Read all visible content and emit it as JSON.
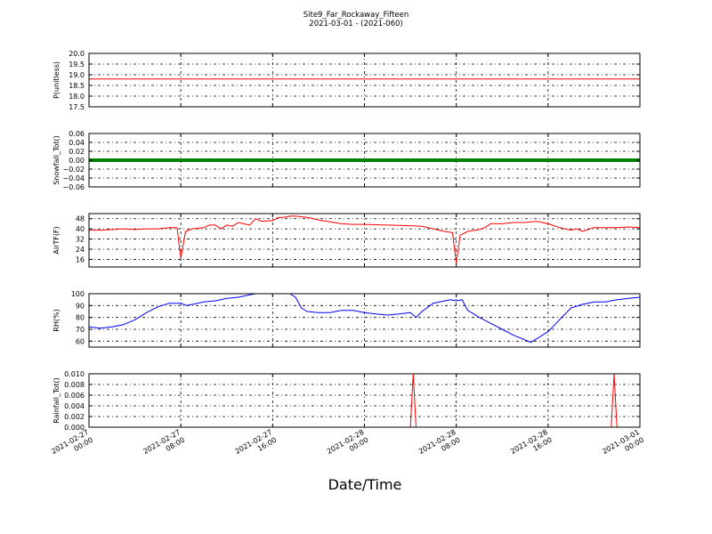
{
  "title_line1": "Site9_Far_Rockaway_Fifteen",
  "title_line2": "2021-03-01 - (2021-060)",
  "xlabel": "Date/Time",
  "x_tick_labels": [
    [
      "2021-02-27",
      "00:00"
    ],
    [
      "2021-02-27",
      "08:00"
    ],
    [
      "2021-02-27",
      "16:00"
    ],
    [
      "2021-02-28",
      "00:00"
    ],
    [
      "2021-02-28",
      "08:00"
    ],
    [
      "2021-02-28",
      "16:00"
    ],
    [
      "2021-03-01",
      "00:00"
    ]
  ],
  "colors": {
    "red": "#ff0000",
    "green": "#008000",
    "blue": "#0000ff",
    "axis": "#000000"
  },
  "chart_data": [
    {
      "type": "line",
      "ylabel": "P(unitless)",
      "x_range": [
        "2021-02-27 00:00",
        "2021-03-01 00:00"
      ],
      "ylim": [
        17.5,
        20.0
      ],
      "yticks": [
        "17.5",
        "18.0",
        "18.5",
        "19.0",
        "19.5",
        "20.0"
      ],
      "color": "#ff0000",
      "points": [
        [
          "2021-02-27 00:00",
          18.8
        ],
        [
          "2021-03-01 00:00",
          18.8
        ]
      ]
    },
    {
      "type": "line",
      "ylabel": "Snowfall_Tot()",
      "x_range": [
        "2021-02-27 00:00",
        "2021-03-01 00:00"
      ],
      "ylim": [
        -0.06,
        0.06
      ],
      "yticks": [
        "−0.06",
        "−0.04",
        "−0.02",
        "0.00",
        "0.02",
        "0.04",
        "0.06"
      ],
      "color": "#008000",
      "points": [
        [
          "2021-02-27 00:00",
          0.0
        ],
        [
          "2021-03-01 00:00",
          0.0
        ]
      ]
    },
    {
      "type": "line",
      "ylabel": "AirTF(F)",
      "x_range": [
        "2021-02-27 00:00",
        "2021-03-01 00:00"
      ],
      "ylim": [
        10,
        52
      ],
      "yticks": [
        "16",
        "24",
        "32",
        "40",
        "48"
      ],
      "color": "#ff0000",
      "points": [
        [
          "2021-02-27 00:00",
          39
        ],
        [
          "2021-02-27 01:00",
          39
        ],
        [
          "2021-02-27 02:00",
          39.5
        ],
        [
          "2021-02-27 03:00",
          40
        ],
        [
          "2021-02-27 04:00",
          39.5
        ],
        [
          "2021-02-27 05:00",
          40
        ],
        [
          "2021-02-27 06:00",
          40
        ],
        [
          "2021-02-27 07:00",
          41
        ],
        [
          "2021-02-27 07:40",
          41
        ],
        [
          "2021-02-27 08:00",
          17
        ],
        [
          "2021-02-27 08:25",
          38
        ],
        [
          "2021-02-27 09:00",
          40
        ],
        [
          "2021-02-27 10:00",
          41
        ],
        [
          "2021-02-27 10:30",
          43
        ],
        [
          "2021-02-27 11:00",
          43
        ],
        [
          "2021-02-27 11:30",
          40
        ],
        [
          "2021-02-27 12:00",
          43
        ],
        [
          "2021-02-27 12:30",
          42
        ],
        [
          "2021-02-27 13:00",
          45
        ],
        [
          "2021-02-27 13:30",
          44
        ],
        [
          "2021-02-27 14:00",
          43
        ],
        [
          "2021-02-27 14:30",
          48
        ],
        [
          "2021-02-27 15:00",
          46
        ],
        [
          "2021-02-27 16:00",
          46.5
        ],
        [
          "2021-02-27 16:30",
          49
        ],
        [
          "2021-02-27 17:00",
          49
        ],
        [
          "2021-02-27 17:30",
          50
        ],
        [
          "2021-02-27 18:00",
          50
        ],
        [
          "2021-02-27 19:00",
          49
        ],
        [
          "2021-02-27 20:00",
          47
        ],
        [
          "2021-02-27 21:00",
          45.5
        ],
        [
          "2021-02-27 22:00",
          44
        ],
        [
          "2021-02-27 23:00",
          43.5
        ],
        [
          "2021-02-28 00:00",
          43.5
        ],
        [
          "2021-02-28 02:00",
          43
        ],
        [
          "2021-02-28 04:00",
          42.5
        ],
        [
          "2021-02-28 05:00",
          42
        ],
        [
          "2021-02-28 06:00",
          40
        ],
        [
          "2021-02-28 07:00",
          38
        ],
        [
          "2021-02-28 07:40",
          37
        ],
        [
          "2021-02-28 08:00",
          13
        ],
        [
          "2021-02-28 08:20",
          35
        ],
        [
          "2021-02-28 09:00",
          38
        ],
        [
          "2021-02-28 10:00",
          39.5
        ],
        [
          "2021-02-28 10:30",
          41
        ],
        [
          "2021-02-28 11:00",
          44
        ],
        [
          "2021-02-28 12:00",
          44
        ],
        [
          "2021-02-28 13:00",
          45
        ],
        [
          "2021-02-28 14:00",
          45
        ],
        [
          "2021-02-28 15:00",
          46
        ],
        [
          "2021-02-28 16:00",
          44
        ],
        [
          "2021-02-28 17:00",
          41
        ],
        [
          "2021-02-28 18:00",
          39
        ],
        [
          "2021-02-28 18:30",
          40
        ],
        [
          "2021-02-28 19:00",
          38
        ],
        [
          "2021-02-28 20:00",
          41
        ],
        [
          "2021-02-28 22:00",
          41
        ],
        [
          "2021-02-28 23:00",
          41.5
        ],
        [
          "2021-03-01 00:00",
          41
        ]
      ]
    },
    {
      "type": "line",
      "ylabel": "RH(%)",
      "x_range": [
        "2021-02-27 00:00",
        "2021-03-01 00:00"
      ],
      "ylim": [
        55,
        100
      ],
      "yticks": [
        "60",
        "70",
        "80",
        "90",
        "100"
      ],
      "color": "#0000ff",
      "points": [
        [
          "2021-02-27 00:00",
          72
        ],
        [
          "2021-02-27 01:00",
          71
        ],
        [
          "2021-02-27 02:00",
          72
        ],
        [
          "2021-02-27 03:00",
          74
        ],
        [
          "2021-02-27 04:00",
          78
        ],
        [
          "2021-02-27 05:00",
          84
        ],
        [
          "2021-02-27 06:00",
          89
        ],
        [
          "2021-02-27 07:00",
          92
        ],
        [
          "2021-02-27 08:00",
          92
        ],
        [
          "2021-02-27 08:30",
          90
        ],
        [
          "2021-02-27 09:00",
          91
        ],
        [
          "2021-02-27 10:00",
          93
        ],
        [
          "2021-02-27 11:00",
          94
        ],
        [
          "2021-02-27 12:00",
          96
        ],
        [
          "2021-02-27 13:00",
          97
        ],
        [
          "2021-02-27 14:00",
          99
        ],
        [
          "2021-02-27 14:30",
          100
        ],
        [
          "2021-02-27 17:30",
          100
        ],
        [
          "2021-02-27 18:00",
          97
        ],
        [
          "2021-02-27 18:30",
          88
        ],
        [
          "2021-02-27 19:00",
          85
        ],
        [
          "2021-02-27 20:00",
          84
        ],
        [
          "2021-02-27 21:00",
          84
        ],
        [
          "2021-02-27 22:00",
          86
        ],
        [
          "2021-02-27 23:00",
          86
        ],
        [
          "2021-02-28 00:00",
          84
        ],
        [
          "2021-02-28 01:00",
          83
        ],
        [
          "2021-02-28 02:00",
          82
        ],
        [
          "2021-02-28 03:00",
          83
        ],
        [
          "2021-02-28 04:00",
          84
        ],
        [
          "2021-02-28 04:30",
          80
        ],
        [
          "2021-02-28 05:00",
          85
        ],
        [
          "2021-02-28 06:00",
          92
        ],
        [
          "2021-02-28 07:00",
          94
        ],
        [
          "2021-02-28 07:30",
          95
        ],
        [
          "2021-02-28 08:00",
          94
        ],
        [
          "2021-02-28 08:30",
          95
        ],
        [
          "2021-02-28 09:00",
          86
        ],
        [
          "2021-02-28 10:00",
          80
        ],
        [
          "2021-02-28 11:00",
          75
        ],
        [
          "2021-02-28 12:00",
          70
        ],
        [
          "2021-02-28 13:00",
          65
        ],
        [
          "2021-02-28 14:00",
          61
        ],
        [
          "2021-02-28 14:30",
          59
        ],
        [
          "2021-02-28 15:00",
          62
        ],
        [
          "2021-02-28 16:00",
          68
        ],
        [
          "2021-02-28 17:00",
          78
        ],
        [
          "2021-02-28 18:00",
          88
        ],
        [
          "2021-02-28 19:00",
          91
        ],
        [
          "2021-02-28 20:00",
          93
        ],
        [
          "2021-02-28 21:00",
          93
        ],
        [
          "2021-02-28 22:00",
          95
        ],
        [
          "2021-02-28 23:00",
          96
        ],
        [
          "2021-03-01 00:00",
          97
        ]
      ]
    },
    {
      "type": "line",
      "ylabel": "Rainfall_Tot()",
      "x_range": [
        "2021-02-27 00:00",
        "2021-03-01 00:00"
      ],
      "ylim": [
        0.0,
        0.01
      ],
      "yticks": [
        "0.000",
        "0.002",
        "0.004",
        "0.006",
        "0.008",
        "0.010"
      ],
      "color": "#ff0000",
      "points": [
        [
          "2021-02-27 00:00",
          0.0
        ],
        [
          "2021-02-28 04:00",
          0.0
        ],
        [
          "2021-02-28 04:15",
          0.01
        ],
        [
          "2021-02-28 04:30",
          0.0
        ],
        [
          "2021-02-28 21:30",
          0.0
        ],
        [
          "2021-02-28 21:45",
          0.01
        ],
        [
          "2021-02-28 22:00",
          0.0
        ],
        [
          "2021-03-01 00:00",
          0.0
        ]
      ]
    }
  ]
}
